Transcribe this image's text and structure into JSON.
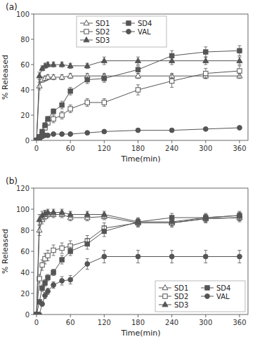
{
  "chart_data": [
    {
      "type": "line",
      "title": "(a)",
      "xlabel": "Time(min)",
      "ylabel": "% Released",
      "x": [
        0,
        5,
        10,
        15,
        20,
        30,
        45,
        60,
        90,
        120,
        180,
        240,
        300,
        360
      ],
      "xlim": [
        -5,
        375
      ],
      "xticks": [
        0,
        60,
        120,
        180,
        240,
        300,
        360
      ],
      "ylim": [
        0,
        100
      ],
      "yticks": [
        0,
        20,
        40,
        60,
        80,
        100
      ],
      "grid": false,
      "legend": "upper left",
      "series": [
        {
          "name": "SD1",
          "color": "#555555",
          "marker": "triangle-open",
          "line_style": "solid",
          "values": [
            0,
            43,
            48,
            49,
            50,
            50,
            50,
            51,
            51,
            51,
            51,
            51,
            51,
            51
          ],
          "errors": [
            0,
            3,
            2,
            2,
            2,
            2,
            2,
            2,
            2,
            2,
            2,
            2,
            2,
            2
          ]
        },
        {
          "name": "SD2",
          "color": "#555555",
          "marker": "square-open",
          "line_style": "solid",
          "values": [
            0,
            0,
            5,
            10,
            14,
            17,
            20,
            25,
            30,
            30,
            40,
            47,
            53,
            55
          ],
          "errors": [
            0,
            0,
            1,
            2,
            2,
            3,
            3,
            3,
            3,
            3,
            4,
            5,
            4,
            4
          ]
        },
        {
          "name": "SD3",
          "color": "#555555",
          "marker": "triangle-filled",
          "line_style": "solid",
          "values": [
            0,
            51,
            57,
            59,
            60,
            60,
            60,
            59,
            59,
            63,
            63,
            63,
            63,
            63
          ],
          "errors": [
            0,
            3,
            2,
            2,
            2,
            2,
            2,
            2,
            2,
            3,
            3,
            3,
            3,
            3
          ]
        },
        {
          "name": "SD4",
          "color": "#555555",
          "marker": "square-filled",
          "line_style": "solid",
          "values": [
            0,
            3,
            7,
            12,
            17,
            23,
            28,
            39,
            48,
            49,
            56,
            67,
            70,
            71
          ],
          "errors": [
            0,
            1,
            1,
            2,
            2,
            2,
            3,
            3,
            3,
            3,
            3,
            4,
            4,
            4
          ]
        },
        {
          "name": "VAL",
          "color": "#555555",
          "marker": "circle-filled",
          "line_style": "solid",
          "values": [
            0,
            1,
            3,
            4,
            4,
            5,
            5,
            5,
            6,
            7,
            8,
            8,
            9,
            10
          ],
          "errors": [
            0,
            0.5,
            0.5,
            0.5,
            0.5,
            0.5,
            0.5,
            0.5,
            0.5,
            0.5,
            0.5,
            0.5,
            0.5,
            0.5
          ]
        }
      ]
    },
    {
      "type": "line",
      "title": "(b)",
      "xlabel": "Time(min)",
      "ylabel": "% Released",
      "x": [
        0,
        5,
        10,
        15,
        20,
        30,
        45,
        60,
        90,
        120,
        180,
        240,
        300,
        360
      ],
      "xlim": [
        -5,
        375
      ],
      "xticks": [
        0,
        60,
        120,
        180,
        240,
        300,
        360
      ],
      "ylim": [
        0,
        120
      ],
      "yticks": [
        0,
        20,
        40,
        60,
        80,
        100,
        120
      ],
      "grid": false,
      "legend": "lower right",
      "series": [
        {
          "name": "SD1",
          "color": "#555555",
          "marker": "triangle-open",
          "line_style": "solid",
          "values": [
            0,
            80,
            90,
            93,
            95,
            95,
            95,
            92,
            92,
            93,
            87,
            87,
            91,
            92
          ],
          "errors": [
            0,
            5,
            4,
            3,
            3,
            3,
            3,
            3,
            3,
            3,
            3,
            3,
            3,
            3
          ]
        },
        {
          "name": "SD2",
          "color": "#555555",
          "marker": "square-open",
          "line_style": "solid",
          "values": [
            0,
            34,
            47,
            53,
            56,
            61,
            63,
            65,
            70,
            82,
            87,
            87,
            91,
            92
          ],
          "errors": [
            0,
            4,
            5,
            5,
            5,
            5,
            5,
            5,
            5,
            5,
            4,
            4,
            4,
            4
          ]
        },
        {
          "name": "SD3",
          "color": "#555555",
          "marker": "triangle-filled",
          "line_style": "solid",
          "values": [
            0,
            90,
            94,
            96,
            97,
            97,
            97,
            95,
            95,
            95,
            88,
            88,
            92,
            94
          ],
          "errors": [
            0,
            5,
            4,
            3,
            3,
            3,
            3,
            3,
            3,
            3,
            3,
            3,
            3,
            3
          ]
        },
        {
          "name": "SD4",
          "color": "#555555",
          "marker": "square-filled",
          "line_style": "solid",
          "values": [
            0,
            12,
            25,
            30,
            35,
            40,
            52,
            60,
            67,
            79,
            88,
            92,
            92,
            94
          ],
          "errors": [
            0,
            2,
            3,
            3,
            3,
            3,
            4,
            4,
            5,
            5,
            4,
            4,
            4,
            4
          ]
        },
        {
          "name": "VAL",
          "color": "#555555",
          "marker": "circle-filled",
          "line_style": "solid",
          "values": [
            0,
            0,
            10,
            18,
            22,
            28,
            32,
            33,
            48,
            55,
            55,
            55,
            55,
            55
          ],
          "errors": [
            0,
            0,
            2,
            3,
            3,
            3,
            4,
            4,
            5,
            6,
            6,
            6,
            6,
            6
          ]
        }
      ]
    }
  ]
}
